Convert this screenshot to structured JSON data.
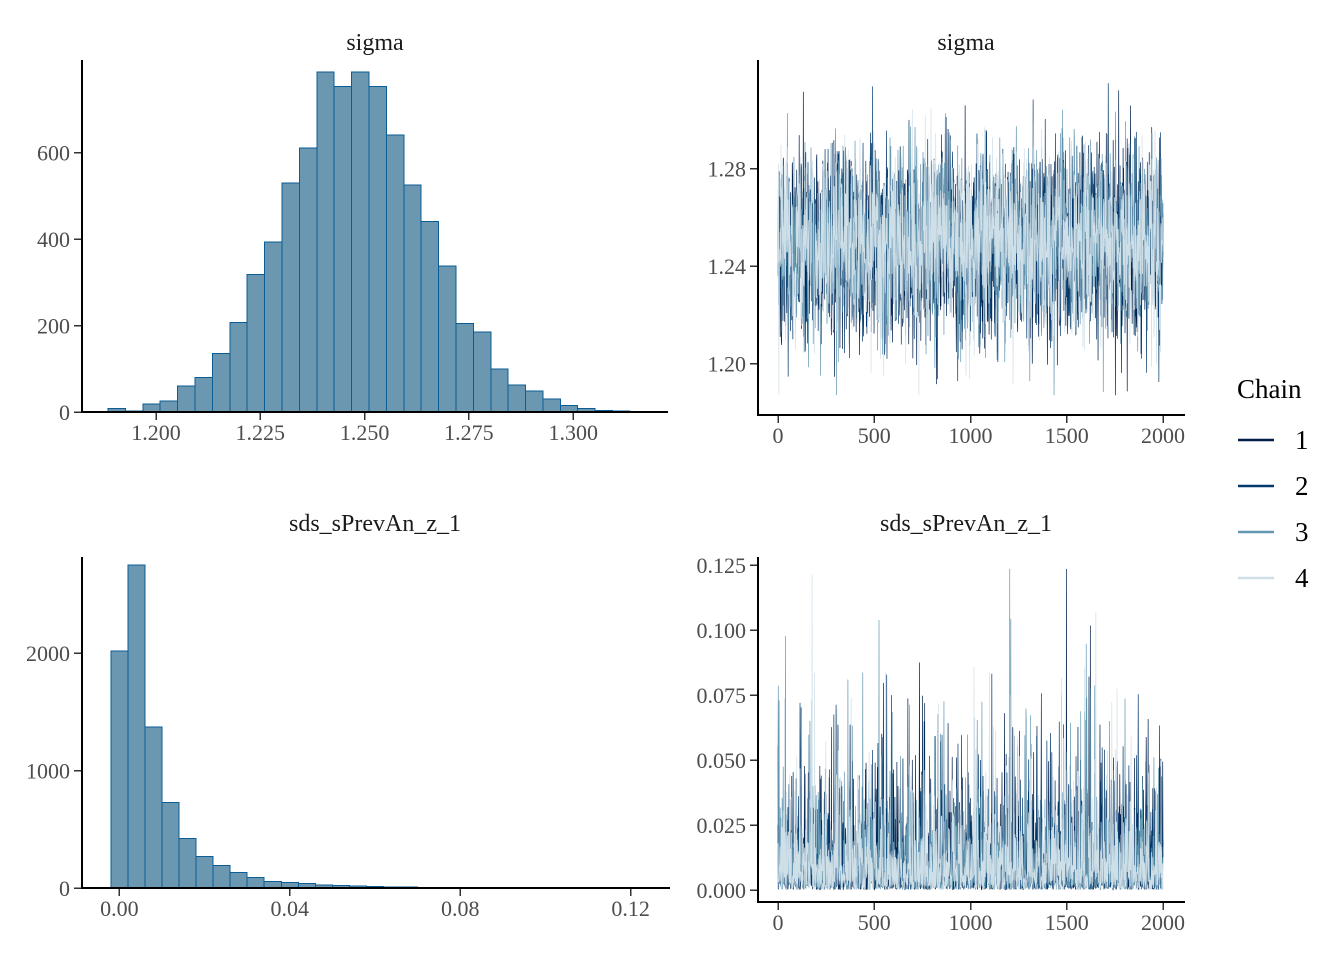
{
  "figure": {
    "background": "#ffffff",
    "description": "MCMC posterior diagnostic plots: histograms and trace plots for two parameters with a 4-chain legend"
  },
  "colors": {
    "chain1": "#011f4b",
    "chain2": "#03396c",
    "chain3": "#6497b1",
    "chain4": "#cfdfe8",
    "hist_fill": "#6b97b1",
    "hist_stroke": "#0b5d95",
    "axis_line": "#000000",
    "tick_mark": "#333333",
    "tick_label": "#4d4d4d",
    "title_text": "#1a1a1a",
    "legend_text": "#000000"
  },
  "legend": {
    "title": "Chain",
    "items": [
      {
        "label": "1",
        "color": "#011f4b"
      },
      {
        "label": "2",
        "color": "#03396c"
      },
      {
        "label": "3",
        "color": "#6497b1"
      },
      {
        "label": "4",
        "color": "#cfdfe8"
      }
    ]
  },
  "chart_data": [
    {
      "id": "sigma_hist",
      "type": "bar",
      "subtype": "histogram",
      "title": "sigma",
      "x_tick_labels": [
        "1.200",
        "1.225",
        "1.250",
        "1.275",
        "1.300"
      ],
      "x_tick_values": [
        1.2,
        1.225,
        1.25,
        1.275,
        1.3
      ],
      "y_tick_labels": [
        "0",
        "200",
        "400",
        "600"
      ],
      "y_tick_values": [
        0,
        200,
        400,
        600
      ],
      "xlim": [
        1.186,
        1.318
      ],
      "ylim": [
        0,
        800
      ],
      "bin_start": 1.1885,
      "bin_width": 0.00417,
      "counts": [
        8,
        2,
        18,
        25,
        60,
        80,
        135,
        207,
        318,
        393,
        530,
        610,
        786,
        753,
        786,
        753,
        640,
        525,
        440,
        338,
        205,
        185,
        100,
        62,
        48,
        30,
        15,
        8,
        3,
        2
      ],
      "grid": false,
      "legend_position": "none"
    },
    {
      "id": "sigma_trace",
      "type": "line",
      "subtype": "mcmc-trace",
      "title": "sigma",
      "x_tick_labels": [
        "0",
        "500",
        "1000",
        "1500",
        "2000"
      ],
      "x_tick_values": [
        0,
        500,
        1000,
        1500,
        2000
      ],
      "y_tick_labels": [
        "1.20",
        "1.24",
        "1.28"
      ],
      "y_tick_values": [
        1.2,
        1.24,
        1.28
      ],
      "xlim": [
        0,
        2000
      ],
      "ylim": [
        1.181,
        1.317
      ],
      "n_iterations": 2000,
      "n_chains": 4,
      "series": [
        {
          "name": "1",
          "distribution": "normal",
          "mean": 1.25,
          "sd": 0.019
        },
        {
          "name": "2",
          "distribution": "normal",
          "mean": 1.25,
          "sd": 0.019
        },
        {
          "name": "3",
          "distribution": "normal",
          "mean": 1.25,
          "sd": 0.019
        },
        {
          "name": "4",
          "distribution": "normal",
          "mean": 1.25,
          "sd": 0.019
        }
      ],
      "value_min": 1.187,
      "value_max": 1.315,
      "seed": 101,
      "grid": false,
      "legend_position": "right"
    },
    {
      "id": "sds_hist",
      "type": "bar",
      "subtype": "histogram",
      "title": "sds_sPrevAn_z_1",
      "x_tick_labels": [
        "0.00",
        "0.04",
        "0.08",
        "0.12"
      ],
      "x_tick_values": [
        0.0,
        0.04,
        0.08,
        0.12
      ],
      "y_tick_labels": [
        "0",
        "1000",
        "2000"
      ],
      "y_tick_values": [
        0,
        1000,
        2000
      ],
      "xlim": [
        -0.006,
        0.127
      ],
      "ylim": [
        0,
        2800
      ],
      "bin_start": -0.002,
      "bin_width": 0.004,
      "counts": [
        2020,
        2750,
        1370,
        730,
        420,
        270,
        190,
        130,
        90,
        55,
        45,
        38,
        25,
        20,
        15,
        12,
        10,
        8,
        6,
        5,
        4,
        3,
        2,
        2,
        5,
        1,
        1,
        2,
        0,
        1,
        2
      ],
      "grid": false,
      "legend_position": "none"
    },
    {
      "id": "sds_trace",
      "type": "line",
      "subtype": "mcmc-trace",
      "title": "sds_sPrevAn_z_1",
      "x_tick_labels": [
        "0",
        "500",
        "1000",
        "1500",
        "2000"
      ],
      "x_tick_values": [
        0,
        500,
        1000,
        1500,
        2000
      ],
      "y_tick_labels": [
        "0.000",
        "0.025",
        "0.050",
        "0.075",
        "0.100",
        "0.125"
      ],
      "y_tick_values": [
        0.0,
        0.025,
        0.05,
        0.075,
        0.1,
        0.125
      ],
      "xlim": [
        0,
        2000
      ],
      "ylim": [
        -0.005,
        0.128
      ],
      "n_iterations": 2000,
      "n_chains": 4,
      "series": [
        {
          "name": "1",
          "distribution": "half-normal",
          "scale": 0.011
        },
        {
          "name": "2",
          "distribution": "half-normal",
          "scale": 0.011
        },
        {
          "name": "3",
          "distribution": "half-normal",
          "scale": 0.011
        },
        {
          "name": "4",
          "distribution": "half-normal",
          "scale": 0.011
        }
      ],
      "value_min": 0.0002,
      "value_max": 0.1235,
      "seed": 202,
      "grid": false,
      "legend_position": "right"
    }
  ]
}
